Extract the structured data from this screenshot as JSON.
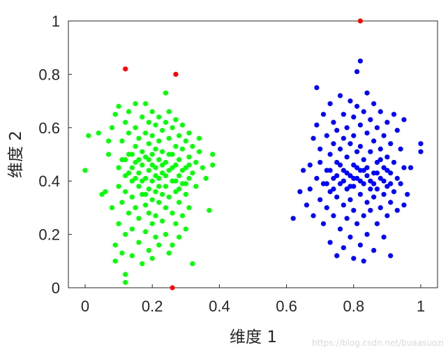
{
  "chart_data": {
    "type": "scatter",
    "xlabel": "维度 1",
    "ylabel": "维度 2",
    "xlim": [
      -0.05,
      1.05
    ],
    "ylim": [
      0,
      1
    ],
    "x_ticks": [
      0,
      0.2,
      0.4,
      0.6,
      0.8,
      1
    ],
    "x_tick_labels": [
      "0",
      "0.2",
      "0.4",
      "0.6",
      "0.8",
      "1"
    ],
    "y_ticks": [
      0,
      0.2,
      0.4,
      0.6,
      0.8,
      1
    ],
    "y_tick_labels": [
      "0",
      "0.2",
      "0.4",
      "0.6",
      "0.8",
      "1"
    ],
    "grid": false,
    "series": [
      {
        "color": "#00ff00",
        "points": [
          [
            0.0,
            0.44
          ],
          [
            0.01,
            0.57
          ],
          [
            0.04,
            0.58
          ],
          [
            0.05,
            0.35
          ],
          [
            0.06,
            0.36
          ],
          [
            0.07,
            0.5
          ],
          [
            0.07,
            0.55
          ],
          [
            0.08,
            0.6
          ],
          [
            0.08,
            0.3
          ],
          [
            0.09,
            0.65
          ],
          [
            0.09,
            0.16
          ],
          [
            0.09,
            0.1
          ],
          [
            0.1,
            0.45
          ],
          [
            0.1,
            0.38
          ],
          [
            0.1,
            0.24
          ],
          [
            0.1,
            0.68
          ],
          [
            0.11,
            0.55
          ],
          [
            0.11,
            0.48
          ],
          [
            0.11,
            0.32
          ],
          [
            0.11,
            0.13
          ],
          [
            0.12,
            0.62
          ],
          [
            0.12,
            0.42
          ],
          [
            0.12,
            0.36
          ],
          [
            0.12,
            0.2
          ],
          [
            0.12,
            0.02
          ],
          [
            0.12,
            0.05
          ],
          [
            0.13,
            0.58
          ],
          [
            0.13,
            0.5
          ],
          [
            0.13,
            0.28
          ],
          [
            0.13,
            0.66
          ],
          [
            0.14,
            0.45
          ],
          [
            0.14,
            0.4
          ],
          [
            0.14,
            0.34
          ],
          [
            0.14,
            0.22
          ],
          [
            0.14,
            0.12
          ],
          [
            0.15,
            0.6
          ],
          [
            0.15,
            0.53
          ],
          [
            0.15,
            0.47
          ],
          [
            0.15,
            0.3
          ],
          [
            0.15,
            0.69
          ],
          [
            0.16,
            0.56
          ],
          [
            0.16,
            0.43
          ],
          [
            0.16,
            0.38
          ],
          [
            0.16,
            0.26
          ],
          [
            0.16,
            0.17
          ],
          [
            0.17,
            0.64
          ],
          [
            0.17,
            0.51
          ],
          [
            0.17,
            0.46
          ],
          [
            0.17,
            0.35
          ],
          [
            0.17,
            0.09
          ],
          [
            0.18,
            0.58
          ],
          [
            0.18,
            0.49
          ],
          [
            0.18,
            0.41
          ],
          [
            0.18,
            0.31
          ],
          [
            0.18,
            0.21
          ],
          [
            0.18,
            0.69
          ],
          [
            0.19,
            0.62
          ],
          [
            0.19,
            0.54
          ],
          [
            0.19,
            0.44
          ],
          [
            0.19,
            0.37
          ],
          [
            0.19,
            0.28
          ],
          [
            0.19,
            0.14
          ],
          [
            0.2,
            0.66
          ],
          [
            0.2,
            0.57
          ],
          [
            0.2,
            0.5
          ],
          [
            0.2,
            0.4
          ],
          [
            0.2,
            0.33
          ],
          [
            0.2,
            0.24
          ],
          [
            0.2,
            0.11
          ],
          [
            0.21,
            0.61
          ],
          [
            0.21,
            0.52
          ],
          [
            0.21,
            0.45
          ],
          [
            0.21,
            0.36
          ],
          [
            0.21,
            0.27
          ],
          [
            0.21,
            0.19
          ],
          [
            0.22,
            0.64
          ],
          [
            0.22,
            0.55
          ],
          [
            0.22,
            0.48
          ],
          [
            0.22,
            0.41
          ],
          [
            0.22,
            0.32
          ],
          [
            0.22,
            0.16
          ],
          [
            0.23,
            0.59
          ],
          [
            0.23,
            0.51
          ],
          [
            0.23,
            0.43
          ],
          [
            0.23,
            0.35
          ],
          [
            0.23,
            0.25
          ],
          [
            0.24,
            0.73
          ],
          [
            0.24,
            0.62
          ],
          [
            0.24,
            0.47
          ],
          [
            0.24,
            0.38
          ],
          [
            0.24,
            0.3
          ],
          [
            0.24,
            0.2
          ],
          [
            0.25,
            0.66
          ],
          [
            0.25,
            0.56
          ],
          [
            0.25,
            0.44
          ],
          [
            0.25,
            0.34
          ],
          [
            0.25,
            0.13
          ],
          [
            0.26,
            0.6
          ],
          [
            0.26,
            0.5
          ],
          [
            0.26,
            0.4
          ],
          [
            0.26,
            0.28
          ],
          [
            0.26,
            0.16
          ],
          [
            0.27,
            0.63
          ],
          [
            0.27,
            0.53
          ],
          [
            0.27,
            0.46
          ],
          [
            0.27,
            0.36
          ],
          [
            0.27,
            0.24
          ],
          [
            0.28,
            0.57
          ],
          [
            0.28,
            0.48
          ],
          [
            0.28,
            0.42
          ],
          [
            0.28,
            0.32
          ],
          [
            0.28,
            0.19
          ],
          [
            0.29,
            0.61
          ],
          [
            0.29,
            0.52
          ],
          [
            0.29,
            0.39
          ],
          [
            0.29,
            0.27
          ],
          [
            0.3,
            0.55
          ],
          [
            0.3,
            0.45
          ],
          [
            0.3,
            0.35
          ],
          [
            0.3,
            0.22
          ],
          [
            0.31,
            0.58
          ],
          [
            0.31,
            0.49
          ],
          [
            0.31,
            0.41
          ],
          [
            0.31,
            0.3
          ],
          [
            0.32,
            0.53
          ],
          [
            0.32,
            0.43
          ],
          [
            0.32,
            0.09
          ],
          [
            0.33,
            0.47
          ],
          [
            0.33,
            0.38
          ],
          [
            0.34,
            0.56
          ],
          [
            0.34,
            0.51
          ],
          [
            0.35,
            0.45
          ],
          [
            0.36,
            0.41
          ],
          [
            0.37,
            0.29
          ],
          [
            0.38,
            0.5
          ],
          [
            0.38,
            0.46
          ],
          [
            0.19,
            0.48
          ],
          [
            0.21,
            0.42
          ],
          [
            0.23,
            0.46
          ],
          [
            0.17,
            0.4
          ],
          [
            0.25,
            0.5
          ],
          [
            0.2,
            0.46
          ],
          [
            0.22,
            0.38
          ],
          [
            0.24,
            0.42
          ],
          [
            0.18,
            0.35
          ],
          [
            0.26,
            0.45
          ],
          [
            0.16,
            0.48
          ],
          [
            0.27,
            0.4
          ],
          [
            0.15,
            0.41
          ],
          [
            0.28,
            0.37
          ],
          [
            0.14,
            0.5
          ],
          [
            0.29,
            0.44
          ],
          [
            0.13,
            0.43
          ],
          [
            0.3,
            0.39
          ],
          [
            0.12,
            0.48
          ],
          [
            0.31,
            0.46
          ]
        ]
      },
      {
        "color": "#0000ff",
        "points": [
          [
            0.62,
            0.26
          ],
          [
            0.64,
            0.36
          ],
          [
            0.65,
            0.44
          ],
          [
            0.66,
            0.31
          ],
          [
            0.67,
            0.46
          ],
          [
            0.67,
            0.37
          ],
          [
            0.68,
            0.56
          ],
          [
            0.68,
            0.27
          ],
          [
            0.69,
            0.75
          ],
          [
            0.69,
            0.61
          ],
          [
            0.69,
            0.41
          ],
          [
            0.7,
            0.52
          ],
          [
            0.7,
            0.33
          ],
          [
            0.7,
            0.47
          ],
          [
            0.71,
            0.65
          ],
          [
            0.71,
            0.39
          ],
          [
            0.71,
            0.24
          ],
          [
            0.72,
            0.57
          ],
          [
            0.72,
            0.44
          ],
          [
            0.72,
            0.3
          ],
          [
            0.73,
            0.69
          ],
          [
            0.73,
            0.5
          ],
          [
            0.73,
            0.36
          ],
          [
            0.73,
            0.17
          ],
          [
            0.74,
            0.62
          ],
          [
            0.74,
            0.54
          ],
          [
            0.74,
            0.41
          ],
          [
            0.74,
            0.27
          ],
          [
            0.75,
            0.59
          ],
          [
            0.75,
            0.47
          ],
          [
            0.75,
            0.34
          ],
          [
            0.75,
            0.12
          ],
          [
            0.76,
            0.72
          ],
          [
            0.76,
            0.52
          ],
          [
            0.76,
            0.39
          ],
          [
            0.76,
            0.22
          ],
          [
            0.77,
            0.65
          ],
          [
            0.77,
            0.56
          ],
          [
            0.77,
            0.44
          ],
          [
            0.77,
            0.31
          ],
          [
            0.77,
            0.15
          ],
          [
            0.78,
            0.6
          ],
          [
            0.78,
            0.49
          ],
          [
            0.78,
            0.37
          ],
          [
            0.78,
            0.26
          ],
          [
            0.79,
            0.7
          ],
          [
            0.79,
            0.54
          ],
          [
            0.79,
            0.42
          ],
          [
            0.79,
            0.33
          ],
          [
            0.79,
            0.19
          ],
          [
            0.8,
            0.64
          ],
          [
            0.8,
            0.57
          ],
          [
            0.8,
            0.46
          ],
          [
            0.8,
            0.38
          ],
          [
            0.8,
            0.29
          ],
          [
            0.8,
            0.11
          ],
          [
            0.81,
            0.81
          ],
          [
            0.81,
            0.68
          ],
          [
            0.81,
            0.51
          ],
          [
            0.81,
            0.41
          ],
          [
            0.81,
            0.24
          ],
          [
            0.82,
            0.85
          ],
          [
            0.82,
            0.61
          ],
          [
            0.82,
            0.53
          ],
          [
            0.82,
            0.44
          ],
          [
            0.82,
            0.35
          ],
          [
            0.82,
            0.16
          ],
          [
            0.83,
            0.66
          ],
          [
            0.83,
            0.48
          ],
          [
            0.83,
            0.39
          ],
          [
            0.83,
            0.27
          ],
          [
            0.83,
            0.1
          ],
          [
            0.84,
            0.73
          ],
          [
            0.84,
            0.58
          ],
          [
            0.84,
            0.45
          ],
          [
            0.84,
            0.32
          ],
          [
            0.84,
            0.2
          ],
          [
            0.85,
            0.63
          ],
          [
            0.85,
            0.51
          ],
          [
            0.85,
            0.4
          ],
          [
            0.85,
            0.29
          ],
          [
            0.86,
            0.69
          ],
          [
            0.86,
            0.55
          ],
          [
            0.86,
            0.43
          ],
          [
            0.86,
            0.34
          ],
          [
            0.86,
            0.14
          ],
          [
            0.87,
            0.6
          ],
          [
            0.87,
            0.47
          ],
          [
            0.87,
            0.37
          ],
          [
            0.87,
            0.24
          ],
          [
            0.88,
            0.66
          ],
          [
            0.88,
            0.52
          ],
          [
            0.88,
            0.41
          ],
          [
            0.88,
            0.3
          ],
          [
            0.89,
            0.57
          ],
          [
            0.89,
            0.45
          ],
          [
            0.89,
            0.35
          ],
          [
            0.89,
            0.19
          ],
          [
            0.9,
            0.62
          ],
          [
            0.9,
            0.49
          ],
          [
            0.9,
            0.38
          ],
          [
            0.9,
            0.27
          ],
          [
            0.91,
            0.54
          ],
          [
            0.91,
            0.43
          ],
          [
            0.91,
            0.32
          ],
          [
            0.91,
            0.12
          ],
          [
            0.92,
            0.65
          ],
          [
            0.92,
            0.47
          ],
          [
            0.92,
            0.36
          ],
          [
            0.93,
            0.59
          ],
          [
            0.93,
            0.41
          ],
          [
            0.93,
            0.29
          ],
          [
            0.94,
            0.52
          ],
          [
            0.94,
            0.39
          ],
          [
            0.95,
            0.63
          ],
          [
            0.95,
            0.45
          ],
          [
            0.95,
            0.31
          ],
          [
            0.96,
            0.35
          ],
          [
            0.97,
            0.45
          ],
          [
            1.0,
            0.54
          ],
          [
            1.0,
            0.51
          ],
          [
            0.78,
            0.43
          ],
          [
            0.8,
            0.41
          ],
          [
            0.82,
            0.4
          ],
          [
            0.84,
            0.42
          ],
          [
            0.79,
            0.38
          ],
          [
            0.81,
            0.45
          ],
          [
            0.83,
            0.44
          ],
          [
            0.85,
            0.37
          ],
          [
            0.77,
            0.4
          ],
          [
            0.86,
            0.39
          ],
          [
            0.76,
            0.46
          ],
          [
            0.87,
            0.43
          ],
          [
            0.75,
            0.42
          ],
          [
            0.88,
            0.48
          ],
          [
            0.74,
            0.37
          ],
          [
            0.89,
            0.4
          ],
          [
            0.73,
            0.44
          ],
          [
            0.9,
            0.44
          ],
          [
            0.72,
            0.39
          ],
          [
            0.91,
            0.39
          ]
        ]
      },
      {
        "color": "#ff0000",
        "points": [
          [
            0.12,
            0.82
          ],
          [
            0.27,
            0.8
          ],
          [
            0.82,
            1.0
          ],
          [
            0.26,
            0.0
          ]
        ]
      }
    ]
  },
  "watermark": "https://blog.csdn.net/buaasuozi"
}
